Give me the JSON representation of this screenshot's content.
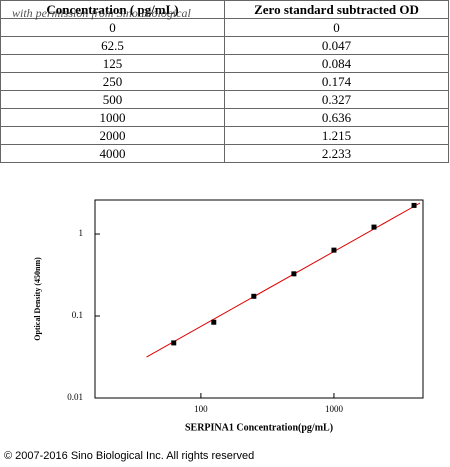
{
  "watermark": "with permission from Sino Biological",
  "table": {
    "header": [
      "Concentration ( pg/mL)",
      "Zero standard subtracted OD"
    ],
    "rows": [
      [
        0,
        0
      ],
      [
        62.5,
        0.047
      ],
      [
        125,
        0.084
      ],
      [
        250,
        0.174
      ],
      [
        500,
        0.327
      ],
      [
        1000,
        0.636
      ],
      [
        2000,
        1.215
      ],
      [
        4000,
        2.233
      ]
    ]
  },
  "chart_data": {
    "type": "scatter",
    "x_label": "SERPINA1  Concentration(pg/mL)",
    "y_label": "Optical Density (450nm)",
    "x": [
      62.5,
      125,
      250,
      500,
      1000,
      2000,
      4000
    ],
    "values": [
      0.047,
      0.084,
      0.174,
      0.327,
      0.636,
      1.215,
      2.233
    ],
    "color": "#000000",
    "x_log": true,
    "y_log": true,
    "xlim": [
      16,
      4670
    ],
    "ylim": [
      0.01,
      2.6
    ],
    "xticks": [
      100,
      1000
    ],
    "yticks": [
      0.01,
      0.1,
      1
    ],
    "fit_line": {
      "x": [
        39,
        4440
      ],
      "y": [
        0.0316,
        2.39
      ],
      "color": "#e00000"
    }
  },
  "footer": "© 2007-2016 Sino Biological Inc. All rights reserved"
}
